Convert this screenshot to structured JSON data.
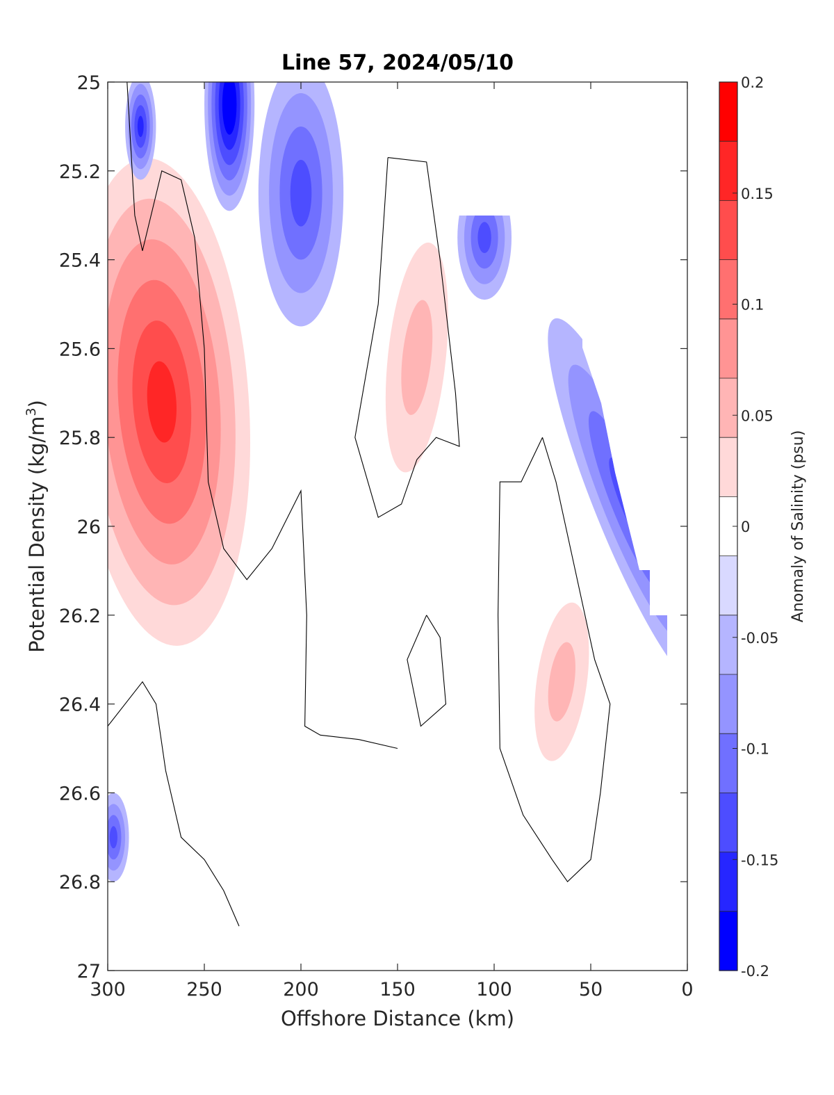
{
  "chart_data": {
    "type": "heatmap",
    "subtype": "filled-contour",
    "title": "Line 57, 2024/05/10",
    "xlabel": "Offshore Distance (km)",
    "ylabel_main": "Potential Density (kg/m",
    "ylabel_sup": "3",
    "ylabel_close": ")",
    "xlim": [
      300,
      0
    ],
    "x_reversed": true,
    "ylim": [
      25,
      27
    ],
    "y_reversed": true,
    "xticks": [
      "300",
      "250",
      "200",
      "150",
      "100",
      "50",
      "0"
    ],
    "yticks": [
      "25",
      "25.2",
      "25.4",
      "25.6",
      "25.8",
      "26",
      "26.2",
      "26.4",
      "26.6",
      "26.8",
      "27"
    ],
    "colorbar": {
      "label": "Anomaly of Salinity (psu)",
      "range": [
        -0.2,
        0.2
      ],
      "ticks": [
        "0.2",
        "0.15",
        "0.1",
        "0.05",
        "0",
        "-0.05",
        "-0.1",
        "-0.15",
        "-0.2"
      ],
      "levels": [
        -0.2,
        -0.175,
        -0.15,
        -0.125,
        -0.1,
        -0.075,
        -0.05,
        -0.025,
        0.025,
        0.05,
        0.075,
        0.1,
        0.125,
        0.15,
        0.175,
        0.2
      ],
      "colors_top_to_bottom": [
        "#ff0000",
        "#ff2626",
        "#ff4d4d",
        "#ff7070",
        "#ff9494",
        "#ffb5b5",
        "#ffd9d9",
        "#ffffff",
        "#d9d9ff",
        "#b5b5ff",
        "#9494ff",
        "#7070ff",
        "#4d4dff",
        "#2626ff",
        "#0000ff"
      ]
    },
    "features": [
      {
        "sign": "positive",
        "center_km": 272,
        "center_density": 25.72,
        "peak_anomaly": 0.14
      },
      {
        "sign": "positive",
        "center_km": 140,
        "center_density": 25.62,
        "peak_anomaly": 0.04
      },
      {
        "sign": "positive",
        "center_km": 65,
        "center_density": 26.35,
        "peak_anomaly": 0.04
      },
      {
        "sign": "negative",
        "center_km": 237,
        "center_density": 25.05,
        "peak_anomaly": -0.17
      },
      {
        "sign": "negative",
        "center_km": 283,
        "center_density": 25.1,
        "peak_anomaly": -0.13
      },
      {
        "sign": "negative",
        "center_km": 200,
        "center_density": 25.25,
        "peak_anomaly": -0.09
      },
      {
        "sign": "negative",
        "center_km": 105,
        "center_density": 25.35,
        "peak_anomaly": -0.1
      },
      {
        "sign": "negative",
        "center_km": 30,
        "center_density": 25.95,
        "peak_anomaly": -0.11
      },
      {
        "sign": "negative",
        "center_km": 297,
        "center_density": 26.7,
        "peak_anomaly": -0.09
      }
    ]
  }
}
